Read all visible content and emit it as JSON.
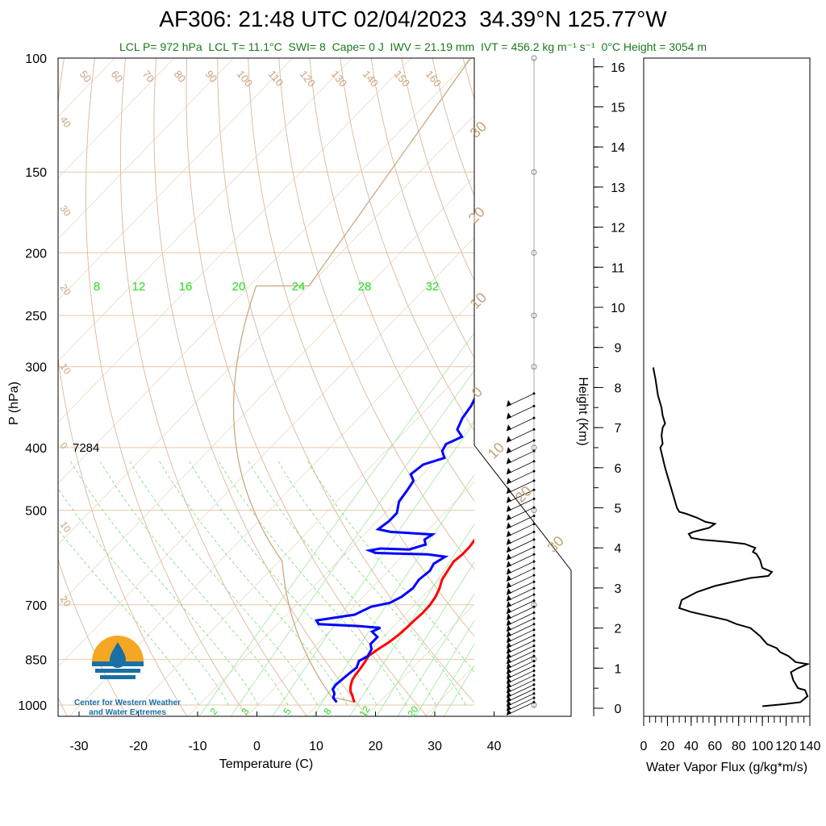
{
  "title": "AF306: 21:48 UTC 02/04/2023  34.39°N 125.77°W",
  "subtitle": "LCL P= 972 hPa  LCL T= 11.1°C  SWI= 8  Cape= 0 J  IWV = 21.19 mm  IVT = 456.2 kg m⁻¹ s⁻¹  0°C Height = 3054 m",
  "logo": {
    "line1": "Center for Western Weather",
    "line2": "and Water Extremes"
  },
  "colors": {
    "temperature": "#ff0000",
    "dewpoint": "#0000ff",
    "dry_adiabat": "#c8a27a",
    "mixing_ratio": "#22dd22",
    "subtitle": "#1a7a1a"
  },
  "chart_data": [
    {
      "type": "line",
      "name": "skew-t",
      "xlabel": "Temperature (C)",
      "ylabel": "P (hPa)",
      "x_ticks": [
        "-30",
        "-20",
        "-10",
        "0",
        "10",
        "20",
        "30",
        "40"
      ],
      "y_ticks": [
        "100",
        "150",
        "200",
        "250",
        "300",
        "400",
        "500",
        "700",
        "850",
        "1000"
      ],
      "xlim": [
        -34,
        41
      ],
      "ylim": [
        1050,
        100
      ],
      "y_scale": "log",
      "annotation": "7284",
      "mixing_ratio_labels_top": [
        "8",
        "12",
        "16",
        "20",
        "24",
        "28",
        "32"
      ],
      "mixing_ratio_labels_bottom": [
        "2",
        "3",
        "5",
        "8",
        "12",
        "20"
      ],
      "adiabat_labels_top": [
        "50",
        "60",
        "70",
        "80",
        "90",
        "100",
        "110",
        "120",
        "130",
        "140",
        "150",
        "160"
      ],
      "adiabat_labels_left": [
        "40",
        "30",
        "20",
        "10",
        "0",
        "10",
        "20"
      ],
      "adiabat_labels_right": [
        "30",
        "20",
        "10",
        "0",
        "10",
        "20",
        "30"
      ],
      "series": [
        {
          "name": "Temperature",
          "points": [
            [
              15.8,
              990
            ],
            [
              15.0,
              978
            ],
            [
              14.3,
              966
            ],
            [
              13.3,
              952
            ],
            [
              12.5,
              935
            ],
            [
              11.8,
              915
            ],
            [
              11.5,
              900
            ],
            [
              11.3,
              880
            ],
            [
              11.0,
              860
            ],
            [
              10.6,
              840
            ],
            [
              11.1,
              820
            ],
            [
              11.8,
              800
            ],
            [
              12.2,
              780
            ],
            [
              12.4,
              760
            ],
            [
              12.5,
              740
            ],
            [
              12.7,
              720
            ],
            [
              12.6,
              700
            ],
            [
              12.2,
              680
            ],
            [
              11.5,
              660
            ],
            [
              10.5,
              640
            ],
            [
              10.0,
              620
            ],
            [
              9.5,
              600
            ],
            [
              9.8,
              585
            ],
            [
              9.8,
              570
            ],
            [
              9.5,
              555
            ],
            [
              9.8,
              540
            ],
            [
              9.5,
              525
            ],
            [
              9.3,
              510
            ],
            [
              9.1,
              490
            ],
            [
              8.5,
              470
            ],
            [
              7.5,
              450
            ],
            [
              6.5,
              435
            ],
            [
              6.0,
              420
            ],
            [
              5.5,
              405
            ],
            [
              5.5,
              390
            ],
            [
              5.0,
              375
            ],
            [
              4.5,
              360
            ],
            [
              4.2,
              350
            ],
            [
              3.2,
              335
            ],
            [
              2.0,
              325
            ]
          ]
        },
        {
          "name": "Dewpoint",
          "points": [
            [
              12.8,
              990
            ],
            [
              11.5,
              975
            ],
            [
              11.0,
              960
            ],
            [
              10.0,
              945
            ],
            [
              9.8,
              930
            ],
            [
              10.0,
              910
            ],
            [
              10.2,
              895
            ],
            [
              10.5,
              875
            ],
            [
              9.8,
              855
            ],
            [
              10.5,
              840
            ],
            [
              10.0,
              820
            ],
            [
              9.0,
              805
            ],
            [
              9.0,
              785
            ],
            [
              7.2,
              770
            ],
            [
              8.0,
              760
            ],
            [
              4.0,
              755
            ],
            [
              -3.0,
              750
            ],
            [
              -4.0,
              740
            ],
            [
              1.5,
              725
            ],
            [
              3.0,
              705
            ],
            [
              5.5,
              695
            ],
            [
              6.5,
              680
            ],
            [
              7.0,
              660
            ],
            [
              6.6,
              640
            ],
            [
              7.0,
              620
            ],
            [
              6.5,
              605
            ],
            [
              7.3,
              590
            ],
            [
              4.0,
              585
            ],
            [
              -5.0,
              582
            ],
            [
              -6.5,
              577
            ],
            [
              -5.0,
              573
            ],
            [
              0.0,
              575
            ],
            [
              2.0,
              565
            ],
            [
              1.0,
              555
            ],
            [
              1.5,
              545
            ],
            [
              -6.0,
              540
            ],
            [
              -8.5,
              535
            ],
            [
              -8.0,
              520
            ],
            [
              -8.0,
              505
            ],
            [
              -9.5,
              485
            ],
            [
              -10.0,
              465
            ],
            [
              -10.5,
              450
            ],
            [
              -12.0,
              440
            ],
            [
              -11.5,
              425
            ],
            [
              -9.0,
              415
            ],
            [
              -10.5,
              405
            ],
            [
              -11.0,
              395
            ],
            [
              -9.5,
              385
            ],
            [
              -11.5,
              375
            ],
            [
              -12.5,
              360
            ],
            [
              -13.0,
              345
            ],
            [
              -14.0,
              330
            ]
          ]
        }
      ]
    },
    {
      "type": "line",
      "name": "water-vapor-flux",
      "xlabel": "Water Vapor Flux (g/kg*m/s)",
      "ylabel": "Height (Km)",
      "x_ticks": [
        "0",
        "20",
        "40",
        "60",
        "80",
        "100",
        "120",
        "140"
      ],
      "y_ticks": [
        "0",
        "1",
        "2",
        "3",
        "4",
        "5",
        "6",
        "7",
        "8",
        "9",
        "10",
        "11",
        "12",
        "13",
        "14",
        "15",
        "16"
      ],
      "xlim": [
        0,
        140
      ],
      "ylim": [
        -0.3,
        16.3
      ],
      "series": [
        {
          "name": "Water Vapor Flux",
          "points": [
            [
              100,
              0.05
            ],
            [
              118,
              0.1
            ],
            [
              132,
              0.15
            ],
            [
              138,
              0.3
            ],
            [
              136,
              0.45
            ],
            [
              130,
              0.5
            ],
            [
              126,
              0.7
            ],
            [
              124,
              0.9
            ],
            [
              130,
              1.0
            ],
            [
              138,
              1.1
            ],
            [
              128,
              1.15
            ],
            [
              122,
              1.3
            ],
            [
              115,
              1.4
            ],
            [
              112,
              1.5
            ],
            [
              104,
              1.6
            ],
            [
              98,
              1.8
            ],
            [
              90,
              2.0
            ],
            [
              78,
              2.1
            ],
            [
              70,
              2.2
            ],
            [
              55,
              2.3
            ],
            [
              40,
              2.4
            ],
            [
              30,
              2.5
            ],
            [
              32,
              2.7
            ],
            [
              45,
              2.9
            ],
            [
              60,
              3.05
            ],
            [
              75,
              3.15
            ],
            [
              90,
              3.25
            ],
            [
              105,
              3.3
            ],
            [
              108,
              3.4
            ],
            [
              100,
              3.5
            ],
            [
              98,
              3.7
            ],
            [
              95,
              3.85
            ],
            [
              92,
              3.9
            ],
            [
              94,
              4.0
            ],
            [
              85,
              4.1
            ],
            [
              70,
              4.15
            ],
            [
              50,
              4.2
            ],
            [
              40,
              4.25
            ],
            [
              38,
              4.35
            ],
            [
              42,
              4.4
            ],
            [
              55,
              4.5
            ],
            [
              60,
              4.6
            ],
            [
              52,
              4.65
            ],
            [
              45,
              4.75
            ],
            [
              36,
              4.85
            ],
            [
              30,
              4.9
            ],
            [
              28,
              5.0
            ],
            [
              26,
              5.2
            ],
            [
              22,
              5.6
            ],
            [
              18,
              6.0
            ],
            [
              14,
              6.5
            ],
            [
              16,
              6.6
            ],
            [
              15,
              6.8
            ],
            [
              16,
              7.0
            ],
            [
              18,
              7.1
            ],
            [
              16,
              7.3
            ],
            [
              15,
              7.5
            ],
            [
              12,
              7.8
            ],
            [
              10,
              8.2
            ],
            [
              8,
              8.5
            ]
          ]
        }
      ]
    }
  ]
}
